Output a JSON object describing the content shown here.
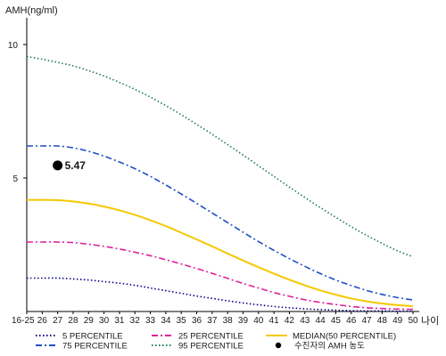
{
  "chart_data": {
    "type": "line",
    "ylabel": "AMH(ng/ml)",
    "xlabel": "나이",
    "ylim": [
      0,
      11
    ],
    "yticks": [
      5,
      10
    ],
    "categories": [
      "16-25",
      "26",
      "27",
      "28",
      "29",
      "30",
      "31",
      "32",
      "33",
      "34",
      "35",
      "36",
      "37",
      "38",
      "39",
      "40",
      "41",
      "42",
      "43",
      "44",
      "45",
      "46",
      "47",
      "48",
      "49",
      "50"
    ],
    "series": [
      {
        "name": "5 PERCENTILE",
        "color": "#000080",
        "dash": "1.5,2.5",
        "values": [
          1.25,
          1.25,
          1.25,
          1.22,
          1.18,
          1.12,
          1.06,
          0.98,
          0.88,
          0.78,
          0.68,
          0.58,
          0.49,
          0.4,
          0.32,
          0.25,
          0.19,
          0.14,
          0.1,
          0.07,
          0.05,
          0.03,
          0.02,
          0.02,
          0.01,
          0.01
        ]
      },
      {
        "name": "25 PERCENTILE",
        "color": "#e0209a",
        "dash": "7,3,2,3",
        "values": [
          2.6,
          2.6,
          2.6,
          2.58,
          2.52,
          2.44,
          2.34,
          2.22,
          2.09,
          1.94,
          1.78,
          1.61,
          1.43,
          1.24,
          1.05,
          0.88,
          0.71,
          0.57,
          0.44,
          0.34,
          0.26,
          0.19,
          0.14,
          0.11,
          0.09,
          0.08
        ]
      },
      {
        "name": "MEDIAN(50 PERCENTILE)",
        "color": "#f5c800",
        "dash": "",
        "values": [
          4.18,
          4.18,
          4.17,
          4.12,
          4.04,
          3.93,
          3.79,
          3.62,
          3.42,
          3.2,
          2.95,
          2.7,
          2.44,
          2.17,
          1.91,
          1.66,
          1.42,
          1.19,
          0.98,
          0.79,
          0.63,
          0.49,
          0.38,
          0.3,
          0.24,
          0.2
        ]
      },
      {
        "name": "75 PERCENTILE",
        "color": "#1f4fc4",
        "dash": "7,3,2,3",
        "values": [
          6.2,
          6.2,
          6.2,
          6.13,
          6.0,
          5.82,
          5.6,
          5.35,
          5.06,
          4.74,
          4.4,
          4.05,
          3.69,
          3.33,
          2.97,
          2.62,
          2.29,
          1.98,
          1.69,
          1.42,
          1.18,
          0.97,
          0.79,
          0.64,
          0.52,
          0.43
        ]
      },
      {
        "name": "95 PERCENTILE",
        "color": "#1f7a4a",
        "dash": "1.5,2.5",
        "values": [
          9.55,
          9.45,
          9.33,
          9.2,
          9.02,
          8.82,
          8.58,
          8.32,
          8.03,
          7.71,
          7.37,
          7.01,
          6.64,
          6.25,
          5.86,
          5.46,
          5.06,
          4.66,
          4.27,
          3.89,
          3.53,
          3.18,
          2.85,
          2.55,
          2.27,
          2.05
        ]
      }
    ],
    "marker": {
      "name": "수진자의 AMH 농도",
      "x": "27",
      "y": 5.47,
      "label": "5.47",
      "color": "#000000"
    },
    "legend": {
      "placement": "bottom"
    },
    "grid": false
  }
}
